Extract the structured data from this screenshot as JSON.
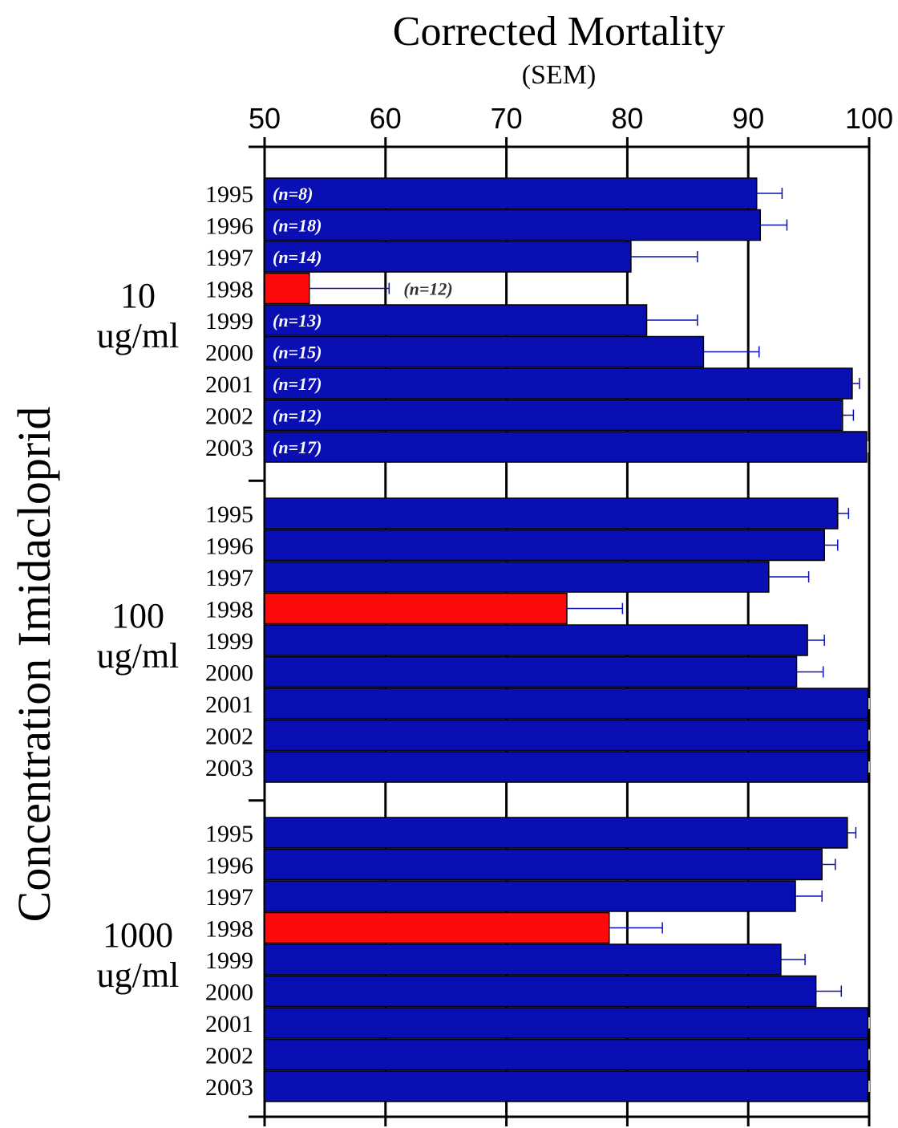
{
  "chart_data": {
    "type": "bar",
    "orientation": "horizontal",
    "title": "Corrected Mortality",
    "subtitle": "(SEM)",
    "ylabel": "Concentration Imidacloprid",
    "xlim": [
      50,
      100
    ],
    "xticks": [
      "50",
      "60",
      "70",
      "80",
      "90",
      "100"
    ],
    "grid": true,
    "colors": {
      "bar": "#0a0fb4",
      "highlight": "#ff0a0a",
      "error_bar": "#0a0fb4",
      "n_label_normal": "#ffffff",
      "n_label_outside": "#333333"
    },
    "groups": [
      {
        "label_line1": "10",
        "label_line2": "ug/ml",
        "bars": [
          {
            "year": "1995",
            "value": 90.7,
            "sem": 2.1,
            "n": "(n=8)",
            "highlight": false
          },
          {
            "year": "1996",
            "value": 91.0,
            "sem": 2.2,
            "n": "(n=18)",
            "highlight": false
          },
          {
            "year": "1997",
            "value": 80.3,
            "sem": 5.5,
            "n": "(n=14)",
            "highlight": false
          },
          {
            "year": "1998",
            "value": 53.7,
            "sem": 6.6,
            "n": "(n=12)",
            "highlight": true
          },
          {
            "year": "1999",
            "value": 81.6,
            "sem": 4.2,
            "n": "(n=13)",
            "highlight": false
          },
          {
            "year": "2000",
            "value": 86.3,
            "sem": 4.6,
            "n": "(n=15)",
            "highlight": false
          },
          {
            "year": "2001",
            "value": 98.6,
            "sem": 0.6,
            "n": "(n=17)",
            "highlight": false
          },
          {
            "year": "2002",
            "value": 97.8,
            "sem": 0.9,
            "n": "(n=12)",
            "highlight": false
          },
          {
            "year": "2003",
            "value": 99.8,
            "sem": 0.1,
            "n": "(n=17)",
            "highlight": false
          }
        ]
      },
      {
        "label_line1": "100",
        "label_line2": "ug/ml",
        "bars": [
          {
            "year": "1995",
            "value": 97.4,
            "sem": 0.9,
            "n": "",
            "highlight": false
          },
          {
            "year": "1996",
            "value": 96.3,
            "sem": 1.1,
            "n": "",
            "highlight": false
          },
          {
            "year": "1997",
            "value": 91.7,
            "sem": 3.3,
            "n": "",
            "highlight": false
          },
          {
            "year": "1998",
            "value": 75.0,
            "sem": 4.6,
            "n": "",
            "highlight": true
          },
          {
            "year": "1999",
            "value": 94.9,
            "sem": 1.4,
            "n": "",
            "highlight": false
          },
          {
            "year": "2000",
            "value": 94.0,
            "sem": 2.2,
            "n": "",
            "highlight": false
          },
          {
            "year": "2001",
            "value": 99.9,
            "sem": 0.1,
            "n": "",
            "highlight": false
          },
          {
            "year": "2002",
            "value": 99.9,
            "sem": 0.1,
            "n": "",
            "highlight": false
          },
          {
            "year": "2003",
            "value": 99.9,
            "sem": 0.1,
            "n": "",
            "highlight": false
          }
        ]
      },
      {
        "label_line1": "1000",
        "label_line2": "ug/ml",
        "bars": [
          {
            "year": "1995",
            "value": 98.2,
            "sem": 0.7,
            "n": "",
            "highlight": false
          },
          {
            "year": "1996",
            "value": 96.1,
            "sem": 1.1,
            "n": "",
            "highlight": false
          },
          {
            "year": "1997",
            "value": 93.9,
            "sem": 2.2,
            "n": "",
            "highlight": false
          },
          {
            "year": "1998",
            "value": 78.5,
            "sem": 4.4,
            "n": "",
            "highlight": true
          },
          {
            "year": "1999",
            "value": 92.7,
            "sem": 2.0,
            "n": "",
            "highlight": false
          },
          {
            "year": "2000",
            "value": 95.6,
            "sem": 2.1,
            "n": "",
            "highlight": false
          },
          {
            "year": "2001",
            "value": 99.9,
            "sem": 0.1,
            "n": "",
            "highlight": false
          },
          {
            "year": "2002",
            "value": 99.9,
            "sem": 0.1,
            "n": "",
            "highlight": false
          },
          {
            "year": "2003",
            "value": 99.9,
            "sem": 0.1,
            "n": "",
            "highlight": false
          }
        ]
      }
    ]
  }
}
